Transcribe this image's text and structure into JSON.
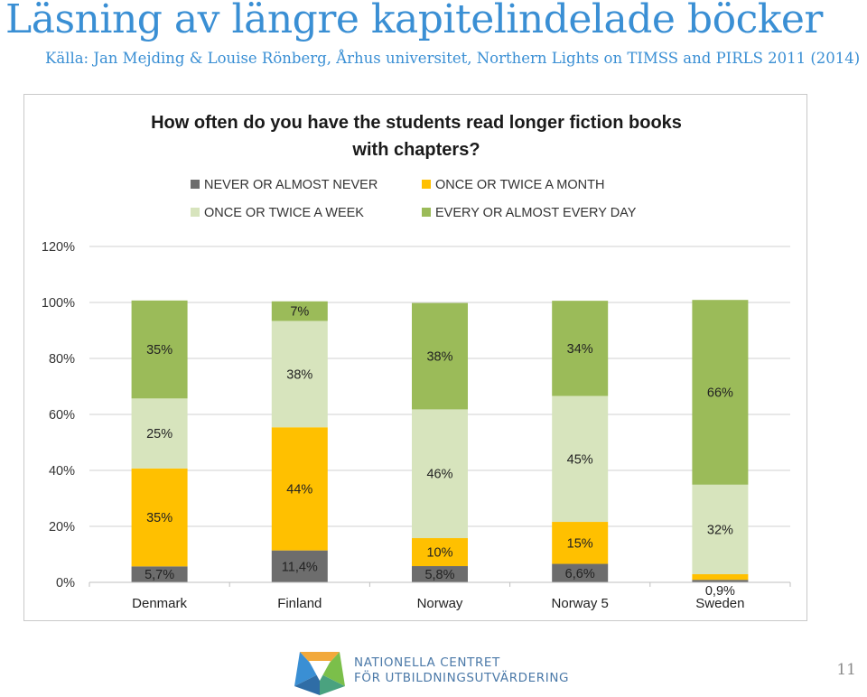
{
  "slide": {
    "title": "Läsning av längre kapitelindelade böcker",
    "source": "Källa: Jan Mejding & Louise Rönberg, Århus universitet, Northern Lights on TIMSS and PIRLS 2011 (2014)",
    "page_number": "11"
  },
  "logo": {
    "line1": "NATIONELLA CENTRET",
    "line2": "FÖR UTBILDNINGSUTVÄRDERING"
  },
  "chart_data": {
    "type": "bar",
    "stacked": true,
    "title": "How often do you have the students read longer fiction books with chapters?",
    "title_lines": [
      "How often do you have the students read longer fiction books",
      "with chapters?"
    ],
    "categories": [
      "Denmark",
      "Finland",
      "Norway",
      "Norway 5",
      "Sweden"
    ],
    "ylim": [
      0,
      120
    ],
    "yticks": [
      "0%",
      "20%",
      "40%",
      "60%",
      "80%",
      "100%",
      "120%"
    ],
    "grid": true,
    "legend_position": "top",
    "series": [
      {
        "name": "NEVER OR ALMOST NEVER",
        "color": "#6d6d6d",
        "values": [
          5.7,
          11.4,
          5.8,
          6.6,
          0.9
        ],
        "labels": [
          "5,7%",
          "11,4%",
          "5,8%",
          "6,6%",
          "0,9%"
        ]
      },
      {
        "name": "ONCE OR TWICE A MONTH",
        "color": "#ffc000",
        "values": [
          35,
          44,
          10,
          15,
          2
        ],
        "labels": [
          "35%",
          "44%",
          "10%",
          "15%",
          "2%"
        ]
      },
      {
        "name": "ONCE OR TWICE A WEEK",
        "color": "#d7e4bd",
        "values": [
          25,
          38,
          46,
          45,
          32
        ],
        "labels": [
          "25%",
          "38%",
          "46%",
          "45%",
          "32%"
        ]
      },
      {
        "name": "EVERY OR ALMOST EVERY DAY",
        "color": "#9bbb59",
        "values": [
          35,
          7,
          38,
          34,
          66
        ],
        "labels": [
          "35%",
          "7%",
          "38%",
          "34%",
          "66%"
        ]
      }
    ]
  }
}
